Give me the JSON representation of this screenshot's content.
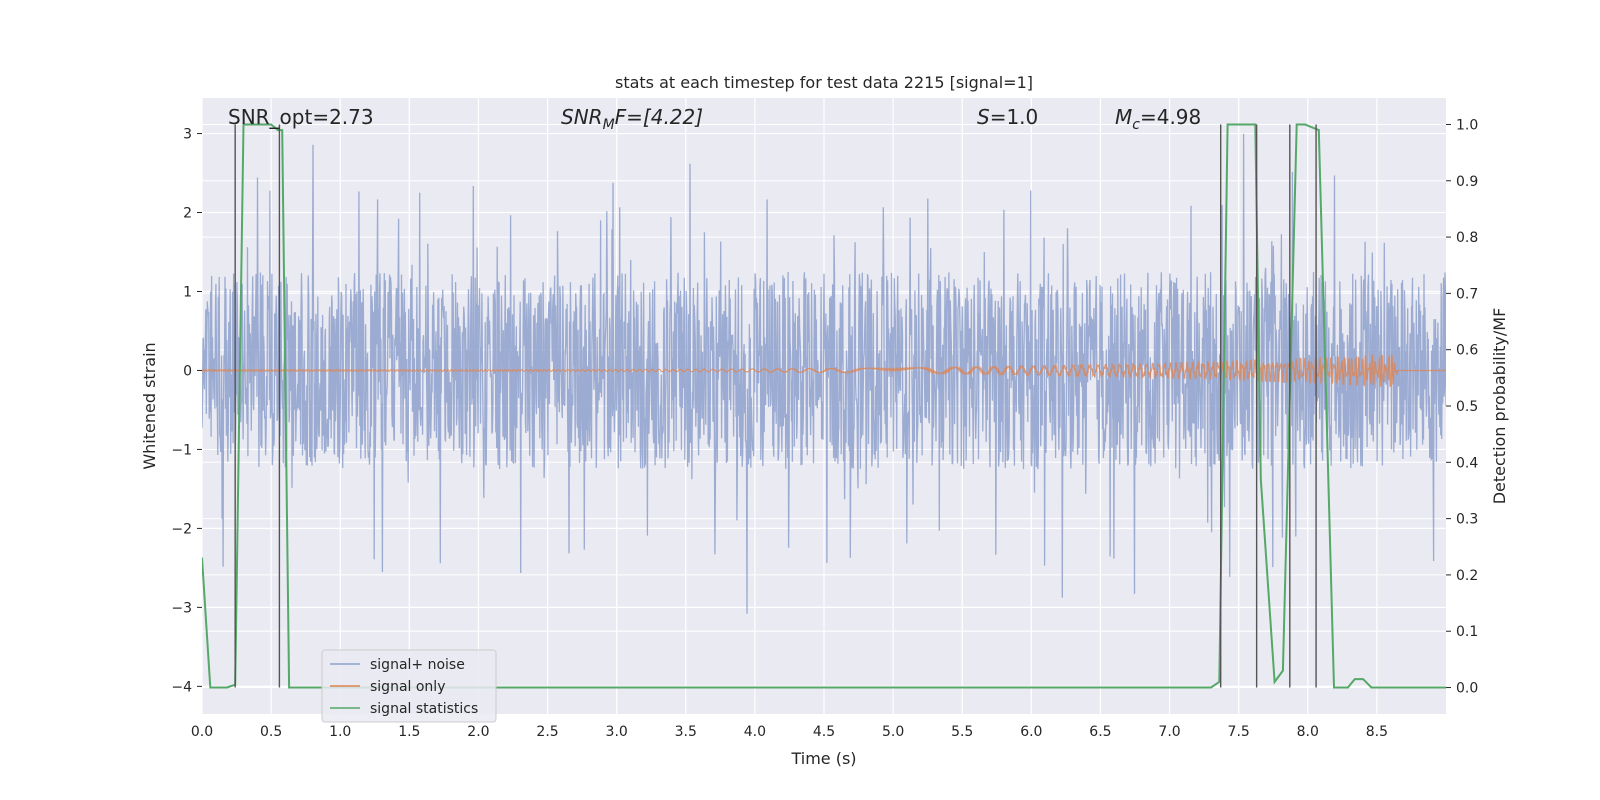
{
  "chart_data": {
    "type": "line",
    "title": "stats at each timestep for test data 2215 [signal=1]",
    "xlabel": "Time (s)",
    "ylabel_left": "Whitened strain",
    "ylabel_right": "Detection probability/MF",
    "xlim": [
      0.0,
      9.0
    ],
    "ylim_left": [
      -4.35,
      3.45
    ],
    "ylim_right": [
      -0.047,
      1.047
    ],
    "x_ticks": [
      "0.0",
      "0.5",
      "1.0",
      "1.5",
      "2.0",
      "2.5",
      "3.0",
      "3.5",
      "4.0",
      "4.5",
      "5.0",
      "5.5",
      "6.0",
      "6.5",
      "7.0",
      "7.5",
      "8.0",
      "8.5"
    ],
    "y_ticks_left": [
      "3",
      "2",
      "1",
      "0",
      "−1",
      "−2",
      "−3",
      "−4"
    ],
    "y_ticks_right": [
      "1.0",
      "0.9",
      "0.8",
      "0.7",
      "0.6",
      "0.5",
      "0.4",
      "0.3",
      "0.2",
      "0.1",
      "0.0"
    ],
    "grid": true,
    "legend_position": "lower-left",
    "annotations": {
      "snr_opt": "SNR_opt=2.73",
      "snr_mf_sym": "SNR",
      "snr_mf_sub": "M",
      "snr_mf_rest": "F=[4.22]",
      "s_sym": "S",
      "s_rest": "=1.0",
      "mc_sym": "M",
      "mc_sub": "c",
      "mc_rest": "=4.98"
    },
    "series": [
      {
        "name": "signal+ noise",
        "color": "#8da0cb",
        "noise_envelope": [
          -1.2,
          1.2
        ],
        "min": -3.75,
        "max": 3.1
      },
      {
        "name": "signal only",
        "color": "#dd8452",
        "chirp_start": 4.0,
        "chirp_end": 8.65,
        "peak_amplitude": 0.2
      },
      {
        "name": "signal statistics",
        "color": "#55a868",
        "x": [
          0.0,
          0.06,
          0.18,
          0.24,
          0.3,
          0.35,
          0.5,
          0.55,
          0.58,
          0.63,
          0.8,
          7.3,
          7.36,
          7.42,
          7.62,
          7.66,
          7.76,
          7.82,
          7.92,
          7.98,
          8.08,
          8.19,
          8.29,
          8.34,
          8.4,
          8.46,
          8.55,
          9.0
        ],
        "y": [
          0.23,
          0.0,
          0.0,
          0.005,
          1.0,
          1.0,
          1.0,
          0.99,
          0.99,
          0.0,
          0.0,
          0.0,
          0.01,
          1.0,
          1.0,
          0.37,
          0.01,
          0.03,
          1.0,
          1.0,
          0.99,
          0.0,
          0.0,
          0.015,
          0.015,
          0.0,
          0.0,
          0.0
        ]
      }
    ],
    "vertical_markers": [
      0.24,
      0.56,
      7.37,
      7.63,
      7.87,
      8.06
    ]
  }
}
